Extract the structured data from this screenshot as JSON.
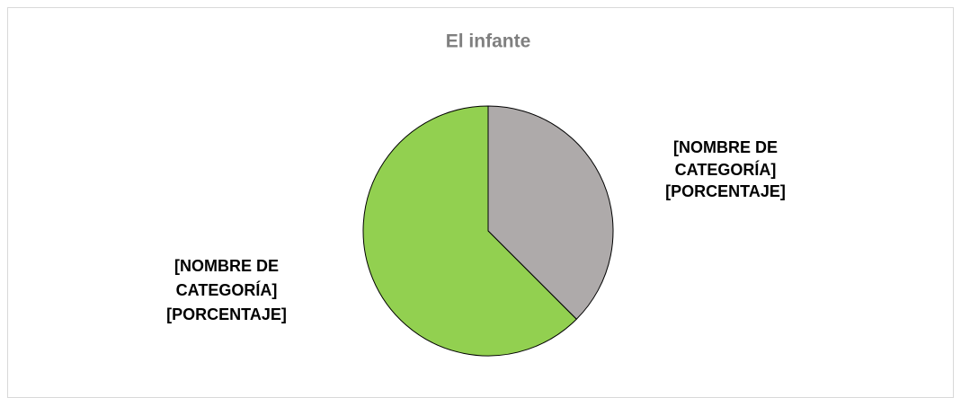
{
  "chart_data": {
    "type": "pie",
    "title": "El infante",
    "values": [
      37.5,
      62.5
    ],
    "colors": [
      "#aeaaaa",
      "#92d050"
    ],
    "data_labels": [
      [
        "[NOMBRE DE",
        "CATEGORÍA]",
        "[PORCENTAJE]"
      ],
      [
        "[NOMBRE DE",
        "CATEGORÍA]",
        "[PORCENTAJE]"
      ]
    ]
  }
}
